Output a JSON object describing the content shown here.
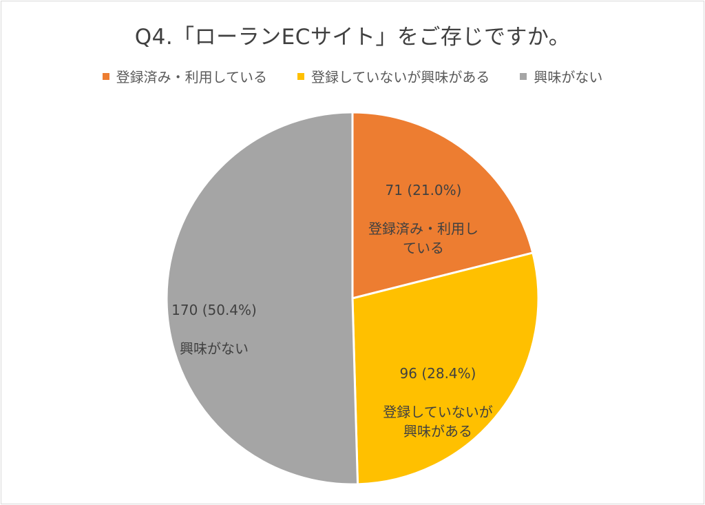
{
  "chart_data": {
    "type": "pie",
    "title": "Q4.「ローランECサイト」をご存じですか。",
    "legend_position": "top",
    "categories": [
      "登録済み・利用している",
      "登録していないが興味がある",
      "興味がない"
    ],
    "values": [
      71,
      96,
      170
    ],
    "percents": [
      "21.0%",
      "28.4%",
      "50.4%"
    ],
    "colors": [
      "#ED7D31",
      "#FFC000",
      "#A5A5A5"
    ],
    "data_labels": [
      {
        "value": "71 (21.0%)",
        "name": "登録済み・利用し\nている"
      },
      {
        "value": "96 (28.4%)",
        "name": "登録していないが\n興味がある"
      },
      {
        "value": "170 (50.4%)",
        "name": "興味がない"
      }
    ]
  }
}
